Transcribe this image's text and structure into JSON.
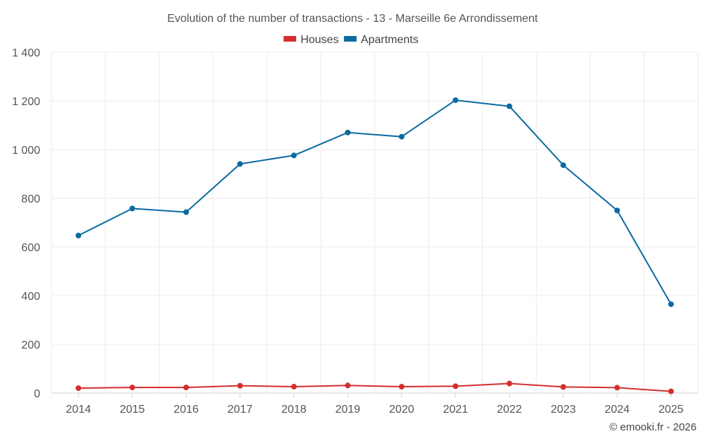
{
  "chart_data": {
    "type": "line",
    "title": "Evolution of the number of transactions - 13 - Marseille 6e Arrondissement",
    "categories": [
      "2014",
      "2015",
      "2016",
      "2017",
      "2018",
      "2019",
      "2020",
      "2021",
      "2022",
      "2023",
      "2024",
      "2025"
    ],
    "ylim": [
      0,
      1400
    ],
    "yticks": [
      0,
      200,
      400,
      600,
      800,
      1000,
      1200,
      1400
    ],
    "ytick_labels": [
      "0",
      "200",
      "400",
      "600",
      "800",
      "1 000",
      "1 200",
      "1 400"
    ],
    "grid": true,
    "legend_position": "top-center",
    "series": [
      {
        "name": "Houses",
        "color": "#d32f2f",
        "values": [
          20,
          23,
          23,
          30,
          26,
          31,
          26,
          28,
          39,
          25,
          22,
          7
        ]
      },
      {
        "name": "Apartments",
        "color": "#0a6aa1",
        "values": [
          647,
          758,
          743,
          941,
          976,
          1070,
          1053,
          1203,
          1178,
          936,
          750,
          365
        ]
      }
    ]
  },
  "credit": "© emooki.fr - 2026"
}
